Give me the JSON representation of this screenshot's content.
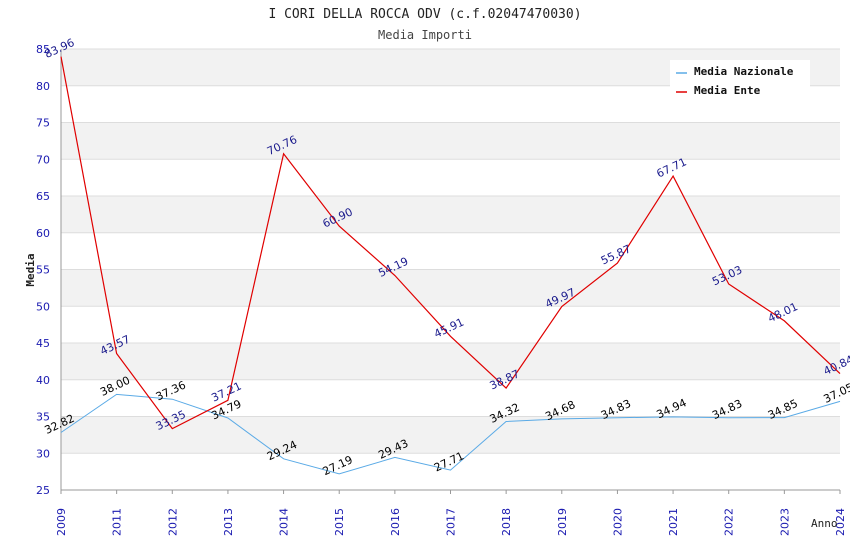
{
  "chart_data": {
    "type": "line",
    "title": "I CORI DELLA ROCCA ODV (c.f.02047470030)",
    "subtitle": "Media Importi",
    "xlabel": "Anno",
    "ylabel": "Media",
    "ylim": [
      25,
      85
    ],
    "yticks": [
      "25",
      "30",
      "35",
      "40",
      "45",
      "50",
      "55",
      "60",
      "65",
      "70",
      "75",
      "80",
      "85"
    ],
    "categories": [
      "2009",
      "2011",
      "2012",
      "2013",
      "2014",
      "2015",
      "2016",
      "2017",
      "2018",
      "2019",
      "2020",
      "2021",
      "2022",
      "2023",
      "2024"
    ],
    "legend_position": "top-right",
    "series": [
      {
        "name": "Media Nazionale",
        "color": "#5aaae6",
        "label_color": "#000000",
        "values": [
          32.82,
          38.0,
          37.36,
          34.79,
          29.24,
          27.19,
          29.43,
          27.71,
          34.32,
          34.68,
          34.83,
          34.94,
          34.83,
          34.85,
          37.05
        ],
        "labels": [
          "32.82",
          "38.00",
          "37.36",
          "34.79",
          "29.24",
          "27.19",
          "29.43",
          "27.71",
          "34.32",
          "34.68",
          "34.83",
          "34.94",
          "34.83",
          "34.85",
          "37.05"
        ]
      },
      {
        "name": "Media Ente",
        "color": "#e00000",
        "label_color": "#1a1a8c",
        "values": [
          83.96,
          43.57,
          33.35,
          37.21,
          70.76,
          60.9,
          54.19,
          45.91,
          38.87,
          49.97,
          55.87,
          67.71,
          53.03,
          48.01,
          40.84
        ],
        "labels": [
          "83.96",
          "43.57",
          "33.35",
          "37.21",
          "70.76",
          "60.90",
          "54.19",
          "45.91",
          "38.87",
          "49.97",
          "55.87",
          "67.71",
          "53.03",
          "48.01",
          "40.84"
        ]
      }
    ]
  }
}
